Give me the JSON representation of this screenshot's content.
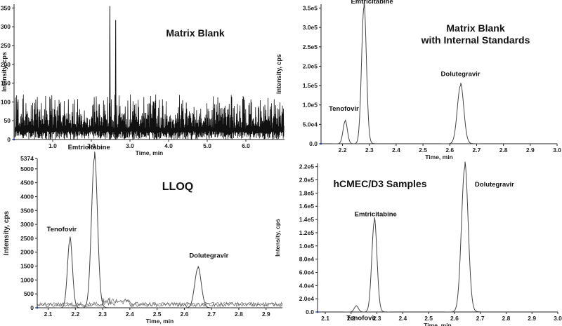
{
  "chart_data": [
    {
      "type": "line",
      "title": "Matrix Blank",
      "xlabel": "Time, min",
      "ylabel": "Intensity, cps",
      "xlim": [
        0.0,
        7.0
      ],
      "ylim": [
        0,
        360
      ],
      "xticks": [
        "1.0",
        "2.0",
        "3.0",
        "4.0",
        "5.0",
        "6.0"
      ],
      "xtick_values": [
        1.0,
        2.0,
        3.0,
        4.0,
        5.0,
        6.0
      ],
      "yticks": [
        "0",
        "50",
        "100",
        "150",
        "200",
        "250",
        "300",
        "350"
      ],
      "ytick_values": [
        0,
        50,
        100,
        150,
        200,
        250,
        300,
        350
      ],
      "noise": {
        "x_start": 0.02,
        "x_end": 6.98,
        "baseline_min": 0,
        "baseline_max": 120,
        "density": 520
      },
      "series": [
        {
          "x": [
            2.47,
            2.48,
            2.49,
            2.62,
            2.63,
            2.64
          ],
          "y": [
            0,
            355,
            0,
            0,
            318,
            0
          ]
        }
      ],
      "annotations": []
    },
    {
      "type": "line",
      "title": "Matrix Blank\nwith Internal Standards",
      "xlabel": "Time, min",
      "ylabel": "Intensity, cps",
      "xlim": [
        2.12,
        3.0
      ],
      "ylim": [
        0,
        360000
      ],
      "xticks": [
        "2.2",
        "2.3",
        "2.4",
        "2.5",
        "2.6",
        "2.7",
        "2.8",
        "2.9",
        "3.0"
      ],
      "xtick_values": [
        2.2,
        2.3,
        2.4,
        2.5,
        2.6,
        2.7,
        2.8,
        2.9,
        3.0
      ],
      "yticks": [
        "0.0",
        "5.0e4",
        "1.0e5",
        "1.5e5",
        "2.0e5",
        "2.5e5",
        "3.0e5",
        "3.5e5"
      ],
      "ytick_values": [
        0,
        50000,
        100000,
        150000,
        200000,
        250000,
        300000,
        350000
      ],
      "peaks": [
        {
          "name": "Tenofovir",
          "center": 2.21,
          "height": 58000,
          "width": 0.008
        },
        {
          "name": "Emtricitabine",
          "center": 2.28,
          "height": 352000,
          "width": 0.009
        },
        {
          "name": "Dolutegravir",
          "center": 2.64,
          "height": 150000,
          "width": 0.012
        }
      ],
      "annotations": [
        {
          "text": "Tenofovir",
          "x": 2.205,
          "y": 85000
        },
        {
          "text": "Emtricitabine",
          "x": 2.31,
          "y": 362000
        },
        {
          "text": "Dolutegravir",
          "x": 2.64,
          "y": 175000
        }
      ]
    },
    {
      "type": "line",
      "title": "LLOQ",
      "xlabel": "Time, min",
      "ylabel": "Intensity, cps",
      "xlim": [
        2.06,
        2.96
      ],
      "ylim": [
        0,
        5374
      ],
      "xticks": [
        "2.1",
        "2.2",
        "2.3",
        "2.4",
        "2.5",
        "2.6",
        "2.7",
        "2.8",
        "2.9"
      ],
      "xtick_values": [
        2.1,
        2.2,
        2.3,
        2.4,
        2.5,
        2.6,
        2.7,
        2.8,
        2.9
      ],
      "yticks": [
        "0",
        "500",
        "1000",
        "1500",
        "2000",
        "2500",
        "3000",
        "3500",
        "4000",
        "4500",
        "5000",
        "5374"
      ],
      "ytick_values": [
        0,
        500,
        1000,
        1500,
        2000,
        2500,
        3000,
        3500,
        4000,
        4500,
        5000,
        5374
      ],
      "peaks": [
        {
          "name": "Tenofovir",
          "center": 2.18,
          "height": 2450,
          "width": 0.009
        },
        {
          "name": "Emtricitabine",
          "center": 2.27,
          "height": 5380,
          "width": 0.011
        },
        {
          "name": "Dolutegravir",
          "center": 2.65,
          "height": 1420,
          "width": 0.012
        }
      ],
      "annotations": [
        {
          "text": "Tenofovir",
          "x": 2.15,
          "y": 2750
        },
        {
          "text": "Emtricitabine",
          "x": 2.25,
          "y": 5700
        },
        {
          "text": "Dolutegravir",
          "x": 2.69,
          "y": 1800
        }
      ]
    },
    {
      "type": "line",
      "title": "hCMEC/D3 Samples",
      "xlabel": "Time, min",
      "ylabel": "Intensity, cps",
      "xlim": [
        2.07,
        3.0
      ],
      "ylim": [
        0,
        225000
      ],
      "xticks": [
        "2.1",
        "2.2",
        "2.3",
        "2.4",
        "2.5",
        "2.6",
        "2.7",
        "2.8",
        "2.9",
        "3.0"
      ],
      "xtick_values": [
        2.1,
        2.2,
        2.3,
        2.4,
        2.5,
        2.6,
        2.7,
        2.8,
        2.9,
        3.0
      ],
      "yticks": [
        "0.0",
        "2.0e4",
        "4.0e4",
        "6.0e4",
        "8.0e4",
        "1.0e5",
        "1.2e5",
        "1.4e5",
        "1.6e5",
        "1.8e5",
        "2.0e5",
        "2.2e5"
      ],
      "ytick_values": [
        0,
        20000,
        40000,
        60000,
        80000,
        100000,
        120000,
        140000,
        160000,
        180000,
        200000,
        220000
      ],
      "peaks": [
        {
          "name": "Tenofovir",
          "center": 2.22,
          "height": 9000,
          "width": 0.008
        },
        {
          "name": "Emtricitabine",
          "center": 2.29,
          "height": 137000,
          "width": 0.01
        },
        {
          "name": "Dolutegravir",
          "center": 2.64,
          "height": 218000,
          "width": 0.013
        }
      ],
      "annotations": [
        {
          "text": "Tenofovir",
          "x": 2.24,
          "y": -12000
        },
        {
          "text": "Emtricitabine",
          "x": 2.295,
          "y": 145000
        },
        {
          "text": "Dolutegravir",
          "x": 2.755,
          "y": 190000
        }
      ]
    }
  ]
}
